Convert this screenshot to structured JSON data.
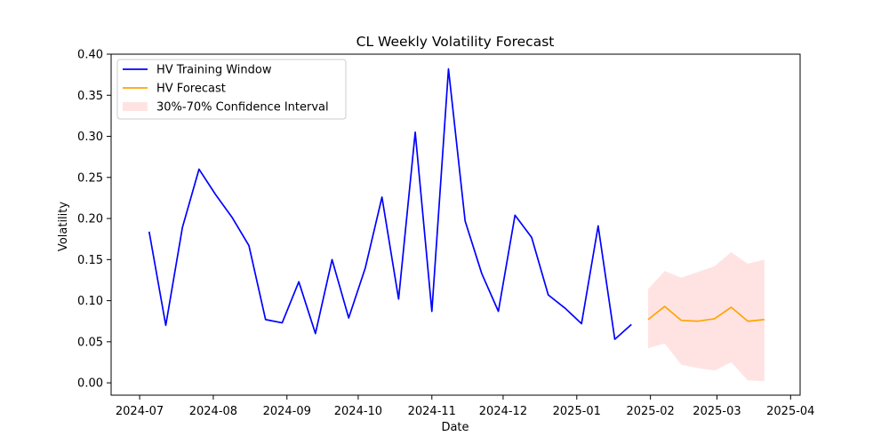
{
  "chart_data": {
    "type": "line",
    "title": "CL Weekly Volatility Forecast",
    "xlabel": "Date",
    "ylabel": "Volatility",
    "xlim": [
      "2024-06-19",
      "2025-04-05"
    ],
    "ylim": [
      -0.015,
      0.4
    ],
    "grid": false,
    "legend_position": "upper-left",
    "x_ticks": [
      "2024-07",
      "2024-08",
      "2024-09",
      "2024-10",
      "2024-11",
      "2024-12",
      "2025-01",
      "2025-02",
      "2025-03",
      "2025-04"
    ],
    "y_ticks": [
      "0.00",
      "0.05",
      "0.10",
      "0.15",
      "0.20",
      "0.25",
      "0.30",
      "0.35",
      "0.40"
    ],
    "series": [
      {
        "name": "HV Training Window",
        "color": "#0000ff",
        "x": [
          "2024-07-05",
          "2024-07-12",
          "2024-07-19",
          "2024-07-26",
          "2024-08-02",
          "2024-08-09",
          "2024-08-16",
          "2024-08-23",
          "2024-08-30",
          "2024-09-06",
          "2024-09-13",
          "2024-09-20",
          "2024-09-27",
          "2024-10-04",
          "2024-10-11",
          "2024-10-18",
          "2024-10-25",
          "2024-11-01",
          "2024-11-08",
          "2024-11-15",
          "2024-11-22",
          "2024-11-29",
          "2024-12-06",
          "2024-12-13",
          "2024-12-20",
          "2024-12-27",
          "2025-01-03",
          "2025-01-10",
          "2025-01-17",
          "2025-01-24"
        ],
        "values": [
          0.184,
          0.07,
          0.189,
          0.26,
          0.229,
          0.201,
          0.167,
          0.077,
          0.073,
          0.123,
          0.06,
          0.15,
          0.079,
          0.14,
          0.226,
          0.102,
          0.305,
          0.087,
          0.382,
          0.197,
          0.133,
          0.087,
          0.204,
          0.177,
          0.107,
          0.091,
          0.072,
          0.191,
          0.053,
          0.071
        ]
      },
      {
        "name": "HV Forecast",
        "color": "#ffa500",
        "x": [
          "2025-01-31",
          "2025-02-07",
          "2025-02-14",
          "2025-02-21",
          "2025-02-28",
          "2025-03-07",
          "2025-03-14",
          "2025-03-21"
        ],
        "values": [
          0.077,
          0.093,
          0.076,
          0.075,
          0.078,
          0.092,
          0.075,
          0.077
        ]
      }
    ],
    "confidence_interval": {
      "name": "30%-70% Confidence Interval",
      "color": "#ffc0c0",
      "x": [
        "2025-01-31",
        "2025-02-07",
        "2025-02-14",
        "2025-02-21",
        "2025-02-28",
        "2025-03-07",
        "2025-03-14",
        "2025-03-21"
      ],
      "lower": [
        0.042,
        0.048,
        0.022,
        0.018,
        0.015,
        0.025,
        0.003,
        0.002
      ],
      "upper": [
        0.114,
        0.136,
        0.128,
        0.135,
        0.142,
        0.159,
        0.145,
        0.15
      ]
    }
  }
}
